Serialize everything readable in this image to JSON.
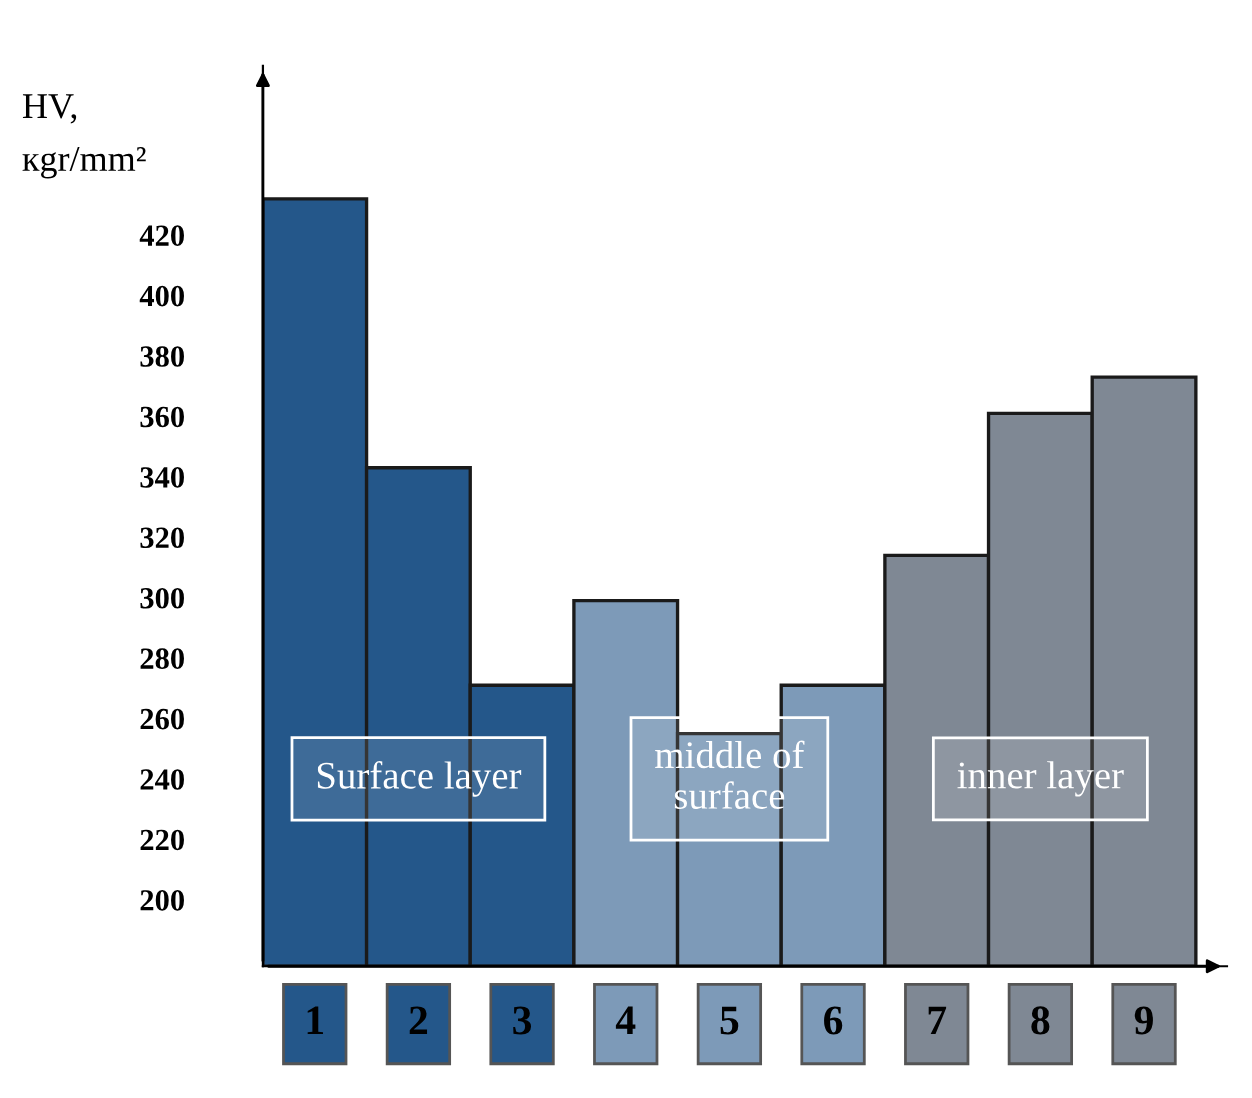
{
  "chart_data": {
    "type": "bar",
    "ylabel": "HV,\nкgr/mm²",
    "categories": [
      "1",
      "2",
      "3",
      "4",
      "5",
      "6",
      "7",
      "8",
      "9"
    ],
    "values": [
      432,
      343,
      271,
      299,
      255,
      271,
      314,
      361,
      373
    ],
    "colors": [
      "#24578a",
      "#24578a",
      "#24578a",
      "#7d9ab8",
      "#7d9ab8",
      "#7d9ab8",
      "#7f8894",
      "#7f8894",
      "#7f8894"
    ],
    "ylim": [
      178,
      476
    ],
    "yticks": [
      200,
      220,
      240,
      260,
      280,
      300,
      320,
      340,
      360,
      380,
      400,
      420
    ],
    "annotations": [
      "Surface layer",
      "middle of\nsurface",
      "inner layer"
    ],
    "grid": false
  }
}
